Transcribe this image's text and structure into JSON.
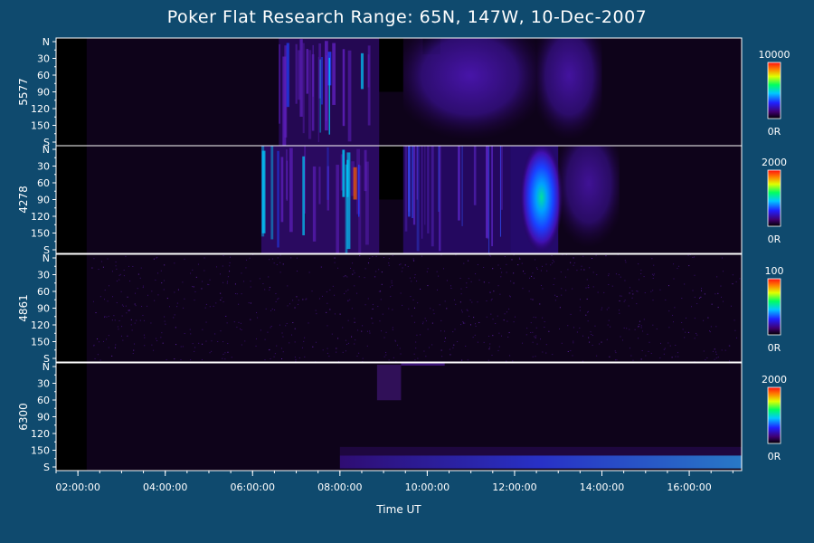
{
  "chart_data": {
    "type": "heatmap",
    "title": "Poker Flat Research Range: 65N, 147W, 10-Dec-2007",
    "xlabel": "Time UT",
    "x_ticks": [
      "02:00:00",
      "04:00:00",
      "06:00:00",
      "08:00:00",
      "10:00:00",
      "12:00:00",
      "14:00:00",
      "16:00:00"
    ],
    "x_range_hours": [
      1.5,
      17.2
    ],
    "y_tick_labels": [
      "N",
      "30",
      "60",
      "90",
      "120",
      "150",
      "S"
    ],
    "y_tick_values": [
      0,
      30,
      60,
      90,
      120,
      150,
      180
    ],
    "colorbar_min_label": "0R",
    "panels": [
      {
        "wavelength": "5577",
        "colorbar_max": "10000",
        "features": [
          {
            "t0": 6.6,
            "t1": 8.9,
            "kind": "arcs",
            "level": 0.3
          },
          {
            "t0": 8.9,
            "t1": 9.45,
            "kind": "gap"
          },
          {
            "t0": 9.9,
            "t1": 10.3,
            "kind": "gap_top"
          },
          {
            "t0": 9.45,
            "t1": 12.5,
            "kind": "diffuse",
            "level": 0.25
          },
          {
            "t0": 12.5,
            "t1": 14.0,
            "kind": "diffuse",
            "level": 0.2
          }
        ]
      },
      {
        "wavelength": "4278",
        "colorbar_max": "2000",
        "features": [
          {
            "t0": 6.2,
            "t1": 8.9,
            "kind": "arcs",
            "level": 0.6
          },
          {
            "t0": 8.9,
            "t1": 9.45,
            "kind": "gap"
          },
          {
            "t0": 9.45,
            "t1": 11.9,
            "kind": "streaks",
            "level": 0.45
          },
          {
            "t0": 11.9,
            "t1": 13.0,
            "kind": "blob",
            "level": 0.7
          },
          {
            "t0": 13.0,
            "t1": 14.4,
            "kind": "diffuse",
            "level": 0.15
          }
        ]
      },
      {
        "wavelength": "4861",
        "colorbar_max": "100",
        "features": [
          {
            "t0": 2.3,
            "t1": 17.2,
            "kind": "noise",
            "level": 0.12
          }
        ]
      },
      {
        "wavelength": "6300",
        "colorbar_max": "2000",
        "features": [
          {
            "t0": 8.85,
            "t1": 9.4,
            "kind": "patch",
            "level": 0.2
          },
          {
            "t0": 9.4,
            "t1": 10.4,
            "kind": "line_top",
            "level": 0.3
          },
          {
            "t0": 8.0,
            "t1": 17.2,
            "kind": "horizon_band",
            "level": 0.5
          }
        ]
      }
    ],
    "grid": false,
    "legend": "right (colorbars)"
  }
}
